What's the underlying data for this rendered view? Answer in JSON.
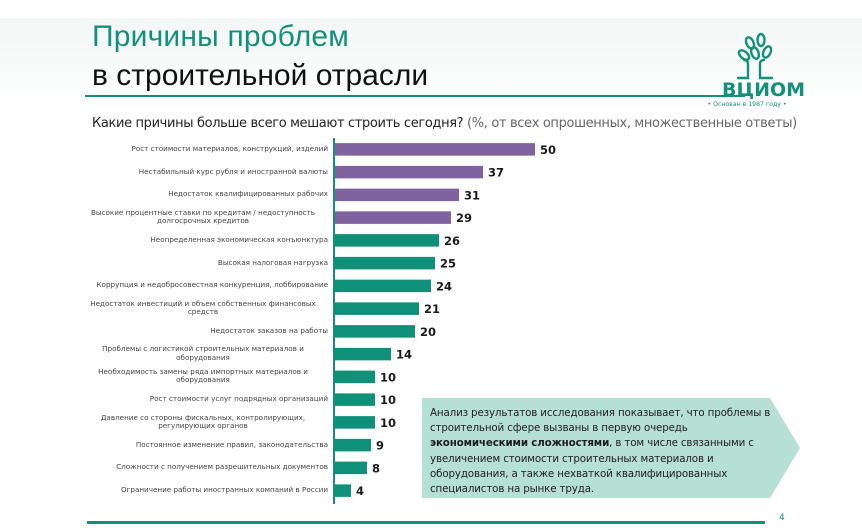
{
  "header": {
    "title_line1": "Причины проблем",
    "title_line2": "в строительной отрасли",
    "logo_text": "ВЦИОМ",
    "logo_subtitle": "• Основан в 1987 году •"
  },
  "question": {
    "text": "Какие причины больше всего мешают строить сегодня?",
    "note": "(%, от всех опрошенных, множественные ответы)"
  },
  "colors": {
    "accent": "#13907a",
    "bar_purple": "#7f62a0",
    "bar_teal": "#0f9078",
    "callout_bg": "#b7e0d5"
  },
  "chart_data": {
    "type": "bar",
    "orientation": "horizontal",
    "title": "Какие причины больше всего мешают строить сегодня?",
    "subtitle": "(%, от всех опрошенных, множественные ответы)",
    "xlabel": "",
    "ylabel": "",
    "xlim": [
      0,
      50
    ],
    "grid": false,
    "categories": [
      "Рост стоимости материалов, конструкций, изделий",
      "Нестабильный курс рубля и иностранной валюты",
      "Недостаток квалифицированных рабочих",
      "Высокие процентные ставки по кредитам / недоступность долгосрочных кредитов",
      "Неопределенная экономическая конъюнктура",
      "Высокая налоговая нагрузка",
      "Коррупция и недобросовестная конкуренция, лоббирование",
      "Недостаток инвестиций и объем собственных финансовых средств",
      "Недостаток заказов на работы",
      "Проблемы с логистикой строительных материалов и оборудования",
      "Необходимость замены ряда импортных материалов и оборудования",
      "Рост стоимости услуг подрядных организаций",
      "Давление со стороны фискальных, контролирующих, регулирующих органов",
      "Постоянное изменение правил, законодательства",
      "Сложности с получением разрешительных документов",
      "Ограничение работы иностранных компаний в России"
    ],
    "values": [
      50,
      37,
      31,
      29,
      26,
      25,
      24,
      21,
      20,
      14,
      10,
      10,
      10,
      9,
      8,
      4
    ],
    "highlight_groups": [
      "purple",
      "purple",
      "purple",
      "purple",
      "teal",
      "teal",
      "teal",
      "teal",
      "teal",
      "teal",
      "teal",
      "teal",
      "teal",
      "teal",
      "teal",
      "teal"
    ],
    "label_lines": [
      [
        "Рост стоимости материалов, конструкций, изделий"
      ],
      [
        "Нестабильный курс рубля и иностранной валюты"
      ],
      [
        "Недостаток квалифицированных рабочих"
      ],
      [
        "Высокие процентные ставки по кредитам / недоступность",
        "долгосрочных кредитов"
      ],
      [
        "Неопределенная экономическая конъюнктура"
      ],
      [
        "Высокая налоговая нагрузка"
      ],
      [
        "Коррупция и недобросовестная конкуренция, лоббирование"
      ],
      [
        "Недостаток инвестиций и объем собственных финансовых",
        "средств"
      ],
      [
        "Недостаток заказов на работы"
      ],
      [
        "Проблемы с логистикой строительных материалов и",
        "оборудования"
      ],
      [
        "Необходимость замены ряда импортных материалов и",
        "оборудования"
      ],
      [
        "Рост стоимости услуг подрядных организаций"
      ],
      [
        "Давление со стороны фискальных, контролирующих,",
        "регулирующих органов"
      ],
      [
        "Постоянное изменение правил, законодательства"
      ],
      [
        "Сложности с получением разрешительных документов"
      ],
      [
        "Ограничение работы иностранных компаний в России"
      ]
    ]
  },
  "callout": {
    "text_before": "Анализ результатов исследования показывает, что проблемы в строительной сфере вызваны в первую очередь ",
    "text_bold": "экономическими сложностями",
    "text_after": ", в том числе связанными с увеличением стоимости строительных материалов и оборудования, а также нехваткой квалифицированных специалистов на рынке труда."
  },
  "footer": {
    "page_number": "4"
  }
}
